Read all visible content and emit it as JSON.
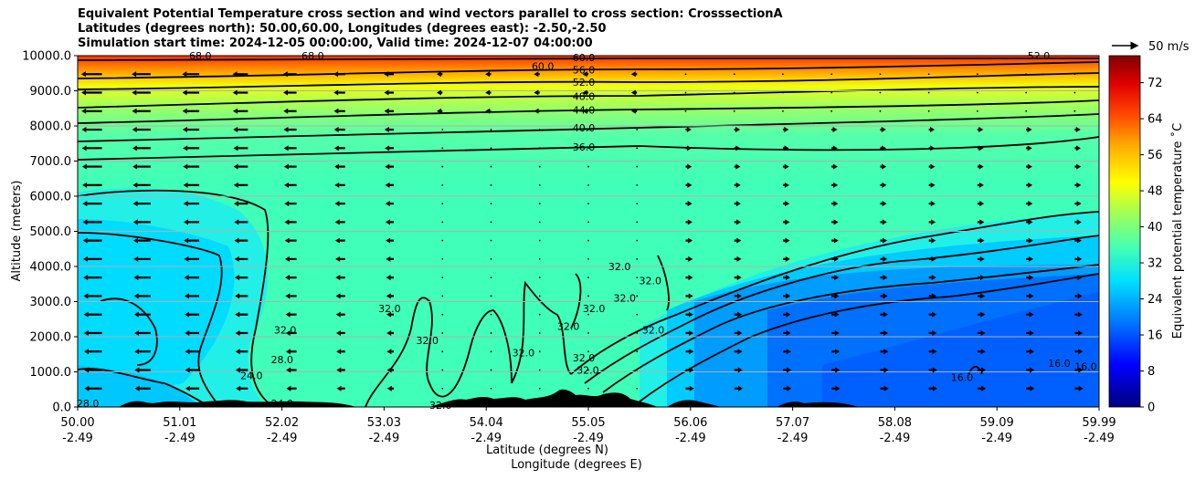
{
  "title_lines": [
    "Equivalent Potential Temperature cross section and wind vectors parallel to cross section: CrosssectionA",
    "Latitudes (degrees north): 50.00,60.00, Longitudes (degrees east): -2.50,-2.50",
    "Simulation start time: 2024-12-05 00:00:00, Valid time: 2024-12-07 04:00:00"
  ],
  "chart_data": {
    "type": "contour-cross-section",
    "xlabel_lat": "Latitude (degrees N)",
    "xlabel_lon": "Longitude (degrees E)",
    "ylabel": "Altitude (meters)",
    "x_ticks": [
      {
        "lat": "50.00",
        "lon": "-2.49"
      },
      {
        "lat": "51.01",
        "lon": "-2.49"
      },
      {
        "lat": "52.02",
        "lon": "-2.49"
      },
      {
        "lat": "53.03",
        "lon": "-2.49"
      },
      {
        "lat": "54.04",
        "lon": "-2.49"
      },
      {
        "lat": "55.05",
        "lon": "-2.49"
      },
      {
        "lat": "56.06",
        "lon": "-2.49"
      },
      {
        "lat": "57.07",
        "lon": "-2.49"
      },
      {
        "lat": "58.08",
        "lon": "-2.49"
      },
      {
        "lat": "59.09",
        "lon": "-2.49"
      },
      {
        "lat": "59.99",
        "lon": "-2.49"
      }
    ],
    "y_ticks": [
      "0.0",
      "1000.0",
      "2000.0",
      "3000.0",
      "4000.0",
      "5000.0",
      "6000.0",
      "7000.0",
      "8000.0",
      "9000.0",
      "10000.0"
    ],
    "ylim": [
      0,
      10000
    ],
    "xlim": [
      50.0,
      59.99
    ],
    "colorbar": {
      "label": "Equivalent potential temperature ˚C",
      "ticks": [
        "0",
        "8",
        "16",
        "24",
        "32",
        "40",
        "48",
        "56",
        "64",
        "72"
      ],
      "range": [
        0,
        78
      ]
    },
    "quiver_key": {
      "label": "50 m/s"
    },
    "contour_labels": [
      {
        "text": "60.0",
        "lat": 54.55,
        "alt": 9700
      },
      {
        "text": "60.0",
        "lat": 54.95,
        "alt": 9950
      },
      {
        "text": "56.0",
        "lat": 54.95,
        "alt": 9600
      },
      {
        "text": "52.0",
        "lat": 54.95,
        "alt": 9250
      },
      {
        "text": "48.0",
        "lat": 54.95,
        "alt": 8850
      },
      {
        "text": "44.0",
        "lat": 54.95,
        "alt": 8450
      },
      {
        "text": "40.0",
        "lat": 54.95,
        "alt": 7950
      },
      {
        "text": "36.0",
        "lat": 54.95,
        "alt": 7400
      },
      {
        "text": "52.0",
        "lat": 59.4,
        "alt": 10000
      },
      {
        "text": "68.0",
        "lat": 51.2,
        "alt": 10000
      },
      {
        "text": "68.0",
        "lat": 52.3,
        "alt": 10000
      },
      {
        "text": "32.0",
        "lat": 52.03,
        "alt": 2200
      },
      {
        "text": "32.0",
        "lat": 53.05,
        "alt": 2800
      },
      {
        "text": "32.0",
        "lat": 53.42,
        "alt": 1900
      },
      {
        "text": "32.0",
        "lat": 54.36,
        "alt": 1550
      },
      {
        "text": "28.0",
        "lat": 52.0,
        "alt": 1350
      },
      {
        "text": "24.0",
        "lat": 51.7,
        "alt": 900
      },
      {
        "text": "28.0",
        "lat": 50.1,
        "alt": 100
      },
      {
        "text": "24.0",
        "lat": 52.0,
        "alt": 100
      },
      {
        "text": "32.0",
        "lat": 55.3,
        "alt": 4000
      },
      {
        "text": "32.0",
        "lat": 55.6,
        "alt": 3600
      },
      {
        "text": "32.0",
        "lat": 55.05,
        "alt": 2800
      },
      {
        "text": "32.0",
        "lat": 55.35,
        "alt": 3100
      },
      {
        "text": "32.0",
        "lat": 55.63,
        "alt": 2200
      },
      {
        "text": "32.0",
        "lat": 54.8,
        "alt": 2300
      },
      {
        "text": "32.0",
        "lat": 54.95,
        "alt": 1400
      },
      {
        "text": "32.0",
        "lat": 54.99,
        "alt": 1050
      },
      {
        "text": "16.0",
        "lat": 58.65,
        "alt": 850
      },
      {
        "text": "16.0",
        "lat": 59.6,
        "alt": 1250
      },
      {
        "text": "16.0",
        "lat": 59.86,
        "alt": 1150
      },
      {
        "text": "32.0",
        "lat": 53.55,
        "alt": 50
      }
    ]
  }
}
